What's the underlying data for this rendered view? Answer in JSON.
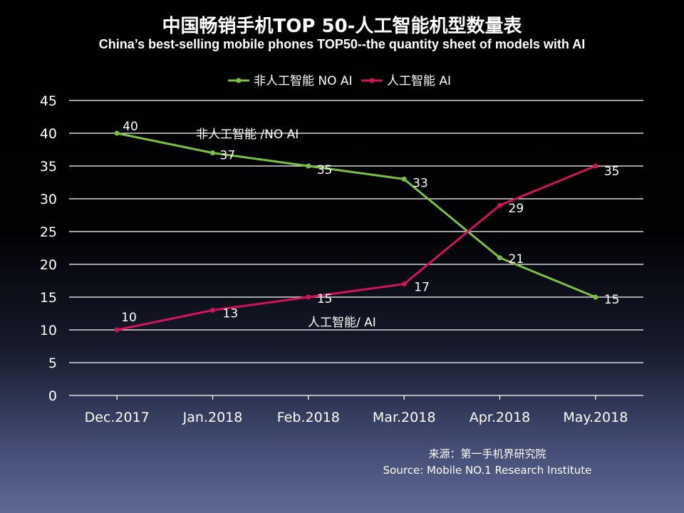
{
  "title_cn": "中国畅销手机TOP 50-人工智能机型数量表",
  "title_en": "China’s best-selling mobile phones TOP50--the quantity sheet of models with AI",
  "source_cn": "来源：第一手机界研究院",
  "source_en": "Source: Mobile NO.1 Research Institute",
  "colors": {
    "no_ai": "#7bc043",
    "ai": "#d0145a",
    "grid": "#ffffff"
  },
  "chart_data": {
    "type": "line",
    "title": "中国畅销手机TOP 50-人工智能机型数量表",
    "subtitle": "China’s best-selling mobile phones TOP50--the quantity sheet of models with AI",
    "xlabel": "",
    "ylabel": "",
    "categories": [
      "Dec.2017",
      "Jan.2018",
      "Feb.2018",
      "Mar.2018",
      "Apr.2018",
      "May.2018"
    ],
    "ylim": [
      0,
      45
    ],
    "yticks": [
      "0",
      "5",
      "10",
      "15",
      "20",
      "25",
      "30",
      "35",
      "40",
      "45"
    ],
    "grid": true,
    "legend_position": "top",
    "series": [
      {
        "name": "非人工智能  NO AI",
        "annotation": "非人工智能 /NO AI",
        "color": "#7bc043",
        "values": [
          40,
          37,
          35,
          33,
          21,
          15
        ]
      },
      {
        "name": "人工智能 AI",
        "annotation": "人工智能/ AI",
        "color": "#d0145a",
        "values": [
          10,
          13,
          15,
          17,
          29,
          35
        ]
      }
    ]
  }
}
